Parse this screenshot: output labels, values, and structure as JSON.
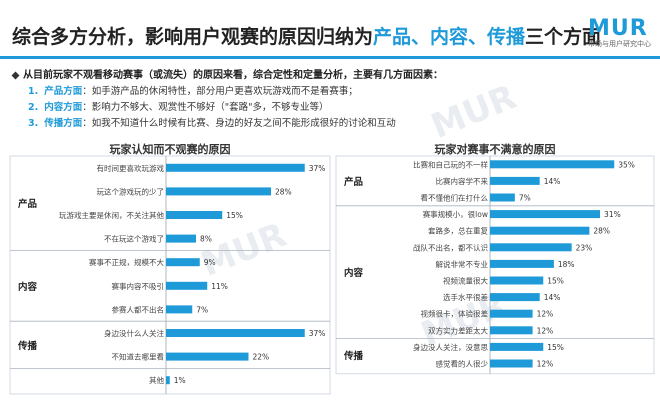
{
  "header": {
    "title_parts": [
      {
        "text": "综合多方分析，影响用户观赛的原因归纳为",
        "hl": false
      },
      {
        "text": "产品、内容、传播",
        "hl": true
      },
      {
        "text": "三个方面",
        "hl": false
      }
    ],
    "logo": "MUR",
    "logo_sub": "市场与用户研究中心"
  },
  "summary": {
    "intro": "从目前玩家不观看移动赛事（或流失）的原因来看，综合定性和定量分析，主要有几方面因素：",
    "points": [
      {
        "num": "1.",
        "keyword": "产品方面",
        "text": "：如手游产品的休闲特性，部分用户更喜欢玩游戏而不是看赛事；"
      },
      {
        "num": "2.",
        "keyword": "内容方面",
        "text": "：影响力不够大、观赏性不够好（\"套路\"多，不够专业等）"
      },
      {
        "num": "3.",
        "keyword": "传播方面",
        "text": "：如我不知道什么时候有比赛、身边的好友之间不能形成很好的讨论和互动"
      }
    ]
  },
  "watermark": {
    "brand": "MUR",
    "cn": "腾讯游戏频道",
    "en": "GAMES.QQ.COM"
  },
  "chart_data": [
    {
      "type": "bar",
      "title": "玩家认知而不观赛的原因",
      "groups": [
        {
          "name": "产品",
          "items": [
            {
              "label": "有时间更喜欢玩游戏",
              "value": 37
            },
            {
              "label": "玩这个游戏玩的少了",
              "value": 28
            },
            {
              "label": "玩游戏主要是休闲，不关注其他",
              "value": 15
            },
            {
              "label": "不在玩这个游戏了",
              "value": 8
            }
          ]
        },
        {
          "name": "内容",
          "items": [
            {
              "label": "赛事不正规，规模不大",
              "value": 9
            },
            {
              "label": "赛事内容不吸引",
              "value": 11
            },
            {
              "label": "参赛人都不出名",
              "value": 7
            }
          ]
        },
        {
          "name": "传播",
          "items": [
            {
              "label": "身边没什么人关注",
              "value": 37
            },
            {
              "label": "不知道去哪里看",
              "value": 22
            }
          ]
        },
        {
          "name": "",
          "items": [
            {
              "label": "其他",
              "value": 1
            }
          ]
        }
      ],
      "unit": "%",
      "xlim": [
        0,
        40
      ]
    },
    {
      "type": "bar",
      "title": "玩家对赛事不满意的原因",
      "groups": [
        {
          "name": "产品",
          "items": [
            {
              "label": "比赛和自己玩的不一样",
              "value": 35
            },
            {
              "label": "比赛内容学不来",
              "value": 14
            },
            {
              "label": "看不懂他们在打什么",
              "value": 7
            }
          ]
        },
        {
          "name": "内容",
          "items": [
            {
              "label": "赛事规模小，很low",
              "value": 31
            },
            {
              "label": "套路多，总在重复",
              "value": 28
            },
            {
              "label": "战队不出名，都不认识",
              "value": 23
            },
            {
              "label": "解说非常不专业",
              "value": 18
            },
            {
              "label": "视频流量很大",
              "value": 15
            },
            {
              "label": "选手水平很差",
              "value": 14
            },
            {
              "label": "视频很卡，体验很差",
              "value": 12
            },
            {
              "label": "双方实力差距太大",
              "value": 12
            }
          ]
        },
        {
          "name": "传播",
          "items": [
            {
              "label": "身边没人关注，没意思",
              "value": 15
            },
            {
              "label": "感觉看的人很少",
              "value": 12
            }
          ]
        }
      ],
      "unit": "%",
      "xlim": [
        0,
        40
      ]
    }
  ],
  "colors": {
    "accent": "#1f9ad8",
    "bar": "#1f9ad8",
    "divider": "#aab4bf"
  }
}
